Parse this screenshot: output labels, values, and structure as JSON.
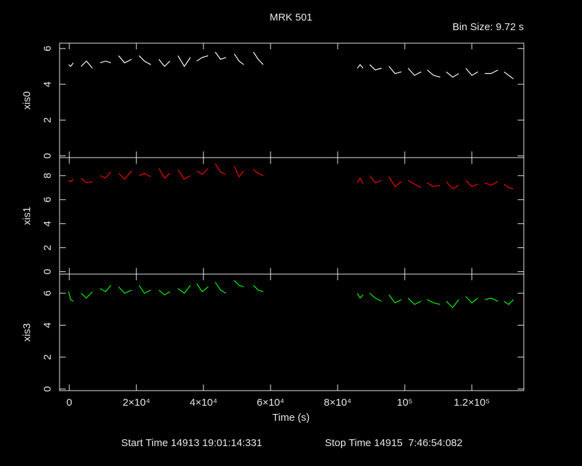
{
  "chart_data": [
    {
      "type": "line",
      "title": "MRK 501",
      "subtitle": "Bin Size: 9.72 s",
      "ylabel": "xis0",
      "color": "#ffffff",
      "x": [
        -200,
        400,
        1200,
        null,
        3500,
        5100,
        6900,
        null,
        9200,
        10800,
        12400,
        null,
        14700,
        16500,
        18600,
        null,
        20800,
        22400,
        24300,
        null,
        26700,
        28400,
        30000,
        null,
        32400,
        34300,
        36100,
        null,
        38000,
        39600,
        41400,
        null,
        43500,
        45100,
        46700,
        null,
        49200,
        50600,
        52000,
        null,
        54900,
        56300,
        57800,
        null,
        85900,
        86700,
        87600,
        null,
        89600,
        91200,
        93100,
        null,
        95300,
        97100,
        99000,
        null,
        101000,
        102900,
        104900,
        null,
        106700,
        108600,
        110600,
        null,
        112400,
        114300,
        116100,
        null,
        118200,
        120000,
        121800,
        null,
        123900,
        125700,
        127800,
        null,
        129600,
        131000,
        132400
      ],
      "values": [
        5.1,
        5.0,
        5.2,
        null,
        5.0,
        5.3,
        4.9,
        null,
        5.2,
        5.3,
        5.2,
        null,
        5.6,
        5.2,
        5.4,
        null,
        5.6,
        5.3,
        5.1,
        null,
        5.4,
        5.0,
        5.3,
        null,
        5.6,
        5.0,
        5.5,
        null,
        5.3,
        5.5,
        5.6,
        null,
        5.8,
        5.4,
        5.5,
        null,
        5.7,
        5.3,
        5.1,
        null,
        5.8,
        5.4,
        5.1,
        null,
        4.9,
        5.1,
        4.9,
        null,
        5.1,
        4.8,
        4.9,
        null,
        5.0,
        4.6,
        4.7,
        null,
        4.9,
        4.5,
        4.7,
        null,
        4.8,
        4.5,
        4.4,
        null,
        4.7,
        4.4,
        4.6,
        null,
        4.9,
        4.5,
        4.7,
        null,
        4.6,
        4.6,
        4.8,
        null,
        4.7,
        4.5,
        4.3
      ],
      "ylim": [
        -0.1,
        6.3
      ],
      "yticks": [
        0,
        2,
        4,
        6
      ]
    },
    {
      "type": "line",
      "ylabel": "xis1",
      "color": "#ff0000",
      "x": [
        -200,
        400,
        1200,
        null,
        3500,
        5100,
        6900,
        null,
        9200,
        10800,
        12400,
        null,
        14700,
        16500,
        18600,
        null,
        20800,
        22400,
        24300,
        null,
        26700,
        28400,
        30000,
        null,
        32400,
        34300,
        36100,
        null,
        38000,
        39600,
        41400,
        null,
        43500,
        45100,
        46700,
        null,
        49200,
        50600,
        52000,
        null,
        54900,
        56300,
        57800,
        null,
        85900,
        86700,
        87600,
        null,
        89600,
        91200,
        93100,
        null,
        95300,
        97100,
        99000,
        null,
        101000,
        102900,
        104900,
        null,
        106700,
        108600,
        110600,
        null,
        112400,
        114300,
        116100,
        null,
        118200,
        120000,
        121800,
        null,
        123900,
        125700,
        127800,
        null,
        129600,
        131000,
        132400
      ],
      "values": [
        7.6,
        7.5,
        7.7,
        null,
        7.8,
        7.4,
        7.5,
        null,
        8.0,
        7.8,
        8.3,
        null,
        8.2,
        7.7,
        8.4,
        null,
        8.0,
        8.2,
        7.9,
        null,
        8.6,
        7.8,
        8.2,
        null,
        8.5,
        7.7,
        8.0,
        null,
        8.4,
        8.1,
        8.6,
        null,
        9.0,
        8.3,
        8.1,
        null,
        8.8,
        7.9,
        8.4,
        null,
        8.5,
        8.2,
        8.0,
        null,
        7.4,
        7.8,
        7.3,
        null,
        8.0,
        7.4,
        7.6,
        null,
        7.9,
        7.1,
        7.5,
        null,
        7.6,
        7.3,
        7.0,
        null,
        7.4,
        7.1,
        7.2,
        null,
        7.5,
        6.9,
        7.2,
        null,
        7.6,
        7.1,
        7.3,
        null,
        7.4,
        7.2,
        7.5,
        null,
        7.3,
        7.0,
        6.9
      ],
      "ylim": [
        -0.2,
        9.5
      ],
      "yticks": [
        0,
        2,
        4,
        6,
        8
      ]
    },
    {
      "type": "line",
      "ylabel": "xis3",
      "color": "#00ff00",
      "xlabel": "Time (s)",
      "x": [
        -200,
        400,
        1200,
        null,
        3500,
        5100,
        6900,
        null,
        9200,
        10800,
        12400,
        null,
        14700,
        16500,
        18600,
        null,
        20800,
        22400,
        24300,
        null,
        26700,
        28400,
        30000,
        null,
        32400,
        34300,
        36100,
        null,
        38000,
        39600,
        41400,
        null,
        43500,
        45100,
        46700,
        null,
        49200,
        50600,
        52000,
        null,
        54900,
        56300,
        57800,
        null,
        85900,
        86700,
        87600,
        null,
        89600,
        91200,
        93100,
        null,
        95300,
        97100,
        99000,
        null,
        101000,
        102900,
        104900,
        null,
        106700,
        108600,
        110600,
        null,
        112400,
        114300,
        116100,
        null,
        118200,
        120000,
        121800,
        null,
        123900,
        125700,
        127800,
        null,
        129600,
        131000,
        132400
      ],
      "values": [
        6.1,
        5.6,
        5.5,
        null,
        6.0,
        5.7,
        6.1,
        null,
        6.3,
        6.1,
        6.5,
        null,
        6.4,
        6.0,
        6.2,
        null,
        6.5,
        6.0,
        6.2,
        null,
        6.2,
        5.9,
        6.1,
        null,
        6.3,
        6.0,
        6.5,
        null,
        6.6,
        6.1,
        6.4,
        null,
        6.7,
        6.2,
        6.0,
        null,
        6.8,
        6.5,
        6.4,
        null,
        6.5,
        6.2,
        6.1,
        null,
        6.0,
        5.7,
        5.9,
        null,
        6.0,
        5.7,
        5.5,
        null,
        5.9,
        5.4,
        5.6,
        null,
        5.7,
        5.3,
        5.5,
        null,
        5.6,
        5.4,
        5.3,
        null,
        5.5,
        5.1,
        5.6,
        null,
        5.8,
        5.4,
        5.7,
        null,
        5.6,
        5.7,
        5.5,
        null,
        5.5,
        5.3,
        5.6
      ],
      "ylim": [
        -0.1,
        7.2
      ],
      "yticks": [
        0,
        2,
        4,
        6
      ],
      "xlim": [
        -2900,
        135500
      ],
      "xticks": [
        0,
        {
          "value": 20000,
          "label": "2×10⁴"
        },
        {
          "value": 40000,
          "label": "4×10⁴"
        },
        {
          "value": 60000,
          "label": "6×10⁴"
        },
        {
          "value": 80000,
          "label": "8×10⁴"
        },
        {
          "value": 100000,
          "label": "10⁵"
        },
        {
          "value": 120000,
          "label": "1.2×10⁵"
        }
      ]
    }
  ],
  "footer": {
    "start_time": "Start Time 14913 19:01:14:331",
    "stop_time": "Stop Time 14915  7:46:54:082"
  }
}
